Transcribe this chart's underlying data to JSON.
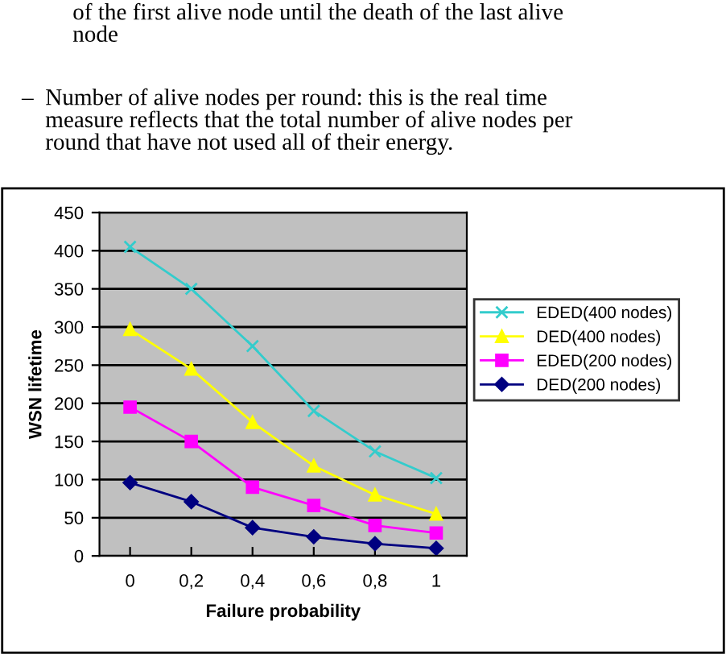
{
  "chart_data": {
    "type": "line",
    "annotations": [
      "of the first alive node until the death of the last alive\nnode",
      "–  Number of alive nodes per round: this is the real time\n    measure reflects that the total number of alive nodes per\n    round that have not used all of their energy."
    ],
    "xlabel": "Failure probability",
    "ylabel": "WSN lifetime",
    "categories": [
      "0",
      "0,2",
      "0,4",
      "0,6",
      "0,8",
      "1"
    ],
    "series": [
      {
        "name": "EDED(400 nodes)",
        "color": "#33cccc",
        "marker": "cross",
        "values": [
          405,
          350,
          275,
          190,
          137,
          102
        ]
      },
      {
        "name": "DED(400 nodes)",
        "color": "#ffff00",
        "marker": "triangle",
        "values": [
          297,
          245,
          175,
          118,
          80,
          55
        ]
      },
      {
        "name": "EDED(200 nodes)",
        "color": "#ff00ff",
        "marker": "square",
        "values": [
          195,
          150,
          90,
          66,
          40,
          30
        ]
      },
      {
        "name": "DED(200 nodes)",
        "color": "#000080",
        "marker": "diamond",
        "values": [
          96,
          71,
          37,
          25,
          16,
          10
        ]
      }
    ],
    "ylim": [
      0,
      450
    ],
    "yticks": [
      0,
      50,
      100,
      150,
      200,
      250,
      300,
      350,
      400,
      450
    ],
    "grid": "y",
    "legend": "right"
  }
}
